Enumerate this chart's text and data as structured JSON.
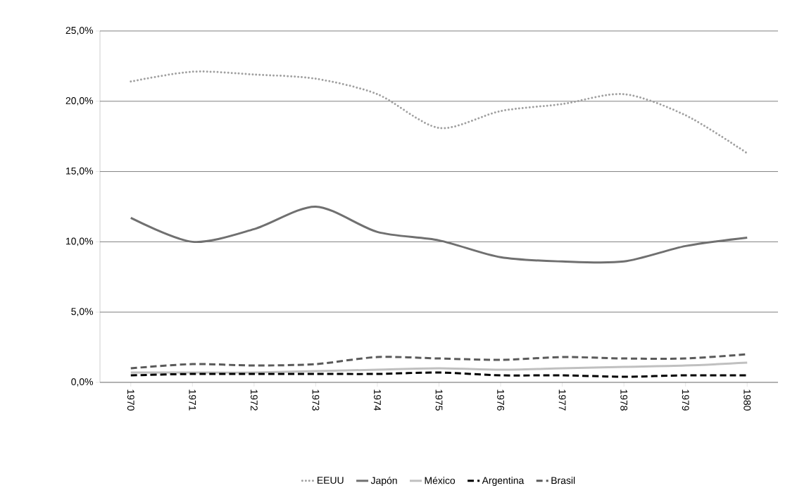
{
  "chart_data": {
    "type": "line",
    "categories": [
      "1970",
      "1971",
      "1972",
      "1973",
      "1974",
      "1975",
      "1976",
      "1977",
      "1978",
      "1979",
      "1980"
    ],
    "series": [
      {
        "name": "EEUU",
        "color": "#a0a0a0",
        "line_style": "dotted",
        "values": [
          21.4,
          22.1,
          21.9,
          21.6,
          20.5,
          18.1,
          19.3,
          19.8,
          20.5,
          19.0,
          16.3
        ]
      },
      {
        "name": "Japón",
        "color": "#707070",
        "line_style": "solid",
        "values": [
          11.7,
          10.0,
          10.9,
          12.5,
          10.7,
          10.1,
          8.9,
          8.6,
          8.6,
          9.7,
          10.3
        ]
      },
      {
        "name": "México",
        "color": "#c0c0c0",
        "line_style": "solid",
        "values": [
          0.7,
          0.7,
          0.7,
          0.8,
          0.9,
          1.0,
          0.9,
          1.0,
          1.1,
          1.2,
          1.4
        ]
      },
      {
        "name": "Argentina",
        "color": "#000000",
        "line_style": "dashed",
        "values": [
          0.5,
          0.6,
          0.6,
          0.6,
          0.6,
          0.7,
          0.5,
          0.5,
          0.4,
          0.5,
          0.5
        ]
      },
      {
        "name": "Brasil",
        "color": "#5a5a5a",
        "line_style": "dashed",
        "values": [
          1.0,
          1.3,
          1.2,
          1.3,
          1.8,
          1.7,
          1.6,
          1.8,
          1.7,
          1.7,
          2.0
        ]
      }
    ],
    "ylim": [
      0,
      25
    ],
    "yticks": [
      {
        "value": 0,
        "label": "0,0%"
      },
      {
        "value": 5,
        "label": "5,0%"
      },
      {
        "value": 10,
        "label": "10,0%"
      },
      {
        "value": 15,
        "label": "15,0%"
      },
      {
        "value": 20,
        "label": "20,0%"
      },
      {
        "value": 25,
        "label": "25,0%"
      }
    ],
    "grid": "y",
    "legend": "bottom",
    "marker": "none"
  }
}
